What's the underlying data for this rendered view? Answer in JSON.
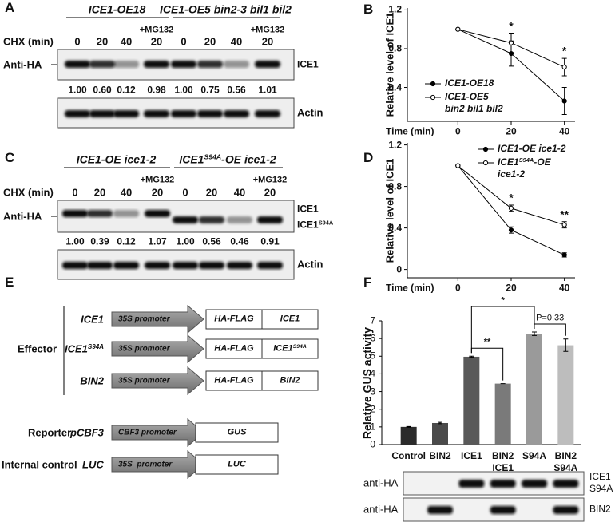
{
  "panel_a": {
    "letter": "A",
    "time_label": "CHX (min)",
    "antibody": "Anti-HA",
    "proteins": [
      "ICE1"
    ],
    "loading": "Actin",
    "groups": [
      {
        "label": "ICE1-OE18",
        "treatment": "+MG132",
        "lanes": [
          "0",
          "20",
          "40",
          "20"
        ],
        "levels": [
          "1.00",
          "0.60",
          "0.12",
          "0.98"
        ]
      },
      {
        "label": "ICE1-OE5 bin2-3 bil1 bil2",
        "treatment": "+MG132",
        "lanes": [
          "0",
          "20",
          "40",
          "20"
        ],
        "levels": [
          "1.00",
          "0.75",
          "0.56",
          "1.01"
        ]
      }
    ]
  },
  "panel_c": {
    "letter": "C",
    "time_label": "CHX (min)",
    "antibody": "Anti-HA",
    "proteins": [
      "ICE1",
      "ICE1S94A"
    ],
    "loading": "Actin",
    "groups": [
      {
        "label": "ICE1-OE ice1-2",
        "treatment": "+MG132",
        "lanes": [
          "0",
          "20",
          "40",
          "20"
        ],
        "levels": [
          "1.00",
          "0.39",
          "0.12",
          "1.07"
        ]
      },
      {
        "label": "ICE1S94A-OE ice1-2",
        "treatment": "+MG132",
        "lanes": [
          "0",
          "20",
          "40",
          "20"
        ],
        "levels": [
          "1.00",
          "0.56",
          "0.46",
          "0.91"
        ]
      }
    ]
  },
  "chart_data": [
    {
      "type": "line",
      "panel": "B",
      "x": [
        0,
        20,
        40
      ],
      "xlim": [
        -19,
        44
      ],
      "xticks": [
        0,
        20,
        40
      ],
      "xlabel": "Time (min)",
      "ylabel": "Relative level of ICE1",
      "ylim": [
        0.05,
        1.22
      ],
      "yticks": [
        0.4,
        0.8,
        1.2
      ],
      "legend": "lower left",
      "series": [
        {
          "name": "ICE1-OE18",
          "color": "#000000",
          "marker_fill": "#000000",
          "values": [
            1,
            0.75,
            0.26
          ],
          "errors": [
            0,
            0.13,
            0.14
          ]
        },
        {
          "name": "ICE1-OE5\nbin2 bil1 bil2",
          "color": "#000000",
          "marker_fill": "#ffffff",
          "values": [
            1,
            0.86,
            0.61
          ],
          "errors": [
            0,
            0.1,
            0.09
          ]
        }
      ],
      "annotations": [
        {
          "text": "*",
          "x": 20
        },
        {
          "text": "*",
          "x": 40
        }
      ]
    },
    {
      "type": "line",
      "panel": "D",
      "x": [
        0,
        20,
        40
      ],
      "xlim": [
        -19,
        44
      ],
      "xticks": [
        0,
        20,
        40
      ],
      "xlabel": "Time (min)",
      "ylabel": "Relative level of ICE1",
      "ylim": [
        -0.08,
        1.22
      ],
      "yticks": [
        0,
        0.4,
        0.8,
        1.2
      ],
      "legend": "upper right",
      "series": [
        {
          "name": "ICE1-OE ice1-2",
          "color": "#000000",
          "marker_fill": "#000000",
          "values": [
            1,
            0.38,
            0.14
          ],
          "errors": [
            0,
            0.03,
            0.02
          ]
        },
        {
          "name": "ICE1S94A-OE\nice1-2",
          "color": "#000000",
          "marker_fill": "#ffffff",
          "values": [
            1,
            0.59,
            0.43
          ],
          "errors": [
            0,
            0.03,
            0.03
          ]
        }
      ],
      "annotations": [
        {
          "text": "*",
          "x": 20
        },
        {
          "text": "**",
          "x": 40
        }
      ]
    },
    {
      "type": "bar",
      "panel": "F",
      "categories": [
        "Control",
        "BIN2",
        "ICE1",
        "BIN2\nICE1",
        "S94A",
        "BIN2\nS94A"
      ],
      "values": [
        1.0,
        1.22,
        4.97,
        3.45,
        6.27,
        5.62
      ],
      "errors": [
        0.02,
        0.04,
        0.03,
        0,
        0.1,
        0.35
      ],
      "colors": [
        "#2b2b2b",
        "#4a4a4a",
        "#595959",
        "#7a7a7a",
        "#9a9a9a",
        "#bdbdbd"
      ],
      "ylabel": "Relative GUS activity",
      "ylim": [
        0,
        7
      ],
      "yticks": [
        0,
        1,
        2,
        3,
        4,
        5,
        6,
        7
      ],
      "comparisons": [
        {
          "from": "S94A",
          "to": "BIN2\nS94A",
          "label": "P=0.33"
        },
        {
          "from": "ICE1",
          "to": "BIN2\nICE1",
          "label": "**"
        },
        {
          "from": "ICE1",
          "to": "S94A",
          "label": "*"
        }
      ]
    }
  ],
  "panel_e": {
    "letter": "E",
    "effector_label": "Effector",
    "constructs": [
      {
        "name": "ICE1",
        "promoter": "35S promoter",
        "tag": "HA-FLAG",
        "gene": "ICE1"
      },
      {
        "name": "ICE1S94A",
        "promoter": "35S promoter",
        "tag": "HA-FLAG",
        "gene": "ICE1S94A"
      },
      {
        "name": "BIN2",
        "promoter": "35S promoter",
        "tag": "HA-FLAG",
        "gene": "BIN2"
      }
    ],
    "reporter": {
      "role": "Reporter",
      "name": "pCBF3",
      "promoter": "CBF3 promoter",
      "gene": "GUS"
    },
    "internal_control": {
      "role": "Internal control",
      "name": "LUC",
      "promoter": "35S  promoter",
      "gene": "LUC"
    }
  },
  "panel_f_blots": [
    {
      "antibody": "anti-HA",
      "protein": "ICE1\nS94A"
    },
    {
      "antibody": "anti-HA",
      "protein": "BIN2"
    }
  ]
}
